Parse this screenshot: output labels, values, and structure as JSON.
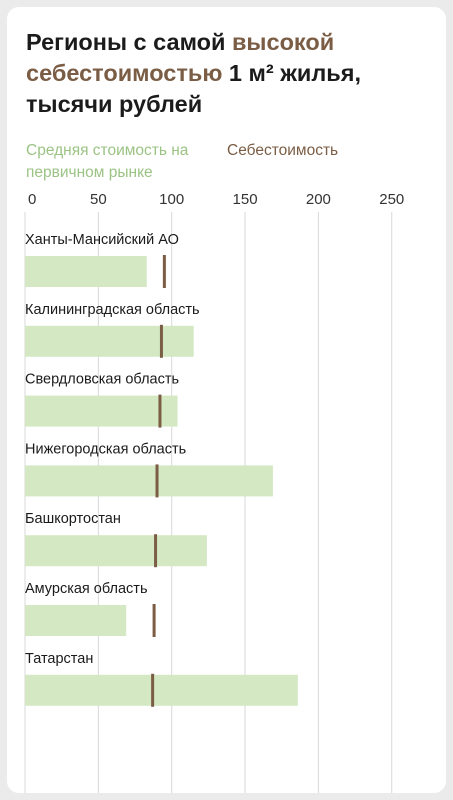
{
  "title": {
    "part1": "Регионы с самой ",
    "highlight": "высокой себестоимостью",
    "part2": " 1 м² жилья, тысячи рублей"
  },
  "colors": {
    "avg": "#d4e9c3",
    "avg_text": "#9bc384",
    "cost": "#7a5d44",
    "grid": "#d8d8d8"
  },
  "chart_data": {
    "type": "bar",
    "orientation": "horizontal",
    "categories": [
      "Ханты-Мансийский АО",
      "Калининградская область",
      "Свердловская область",
      "Нижегородская область",
      "Башкортостан",
      "Амурская область",
      "Татарстан"
    ],
    "series": [
      {
        "name": "Средняя стоимость на первичном рынке",
        "values": [
          83,
          115,
          104,
          169,
          124,
          69,
          186
        ],
        "mark": "bar"
      },
      {
        "name": "Себестоимость",
        "values": [
          95,
          93,
          92,
          90,
          89,
          88,
          87
        ],
        "mark": "tick"
      }
    ],
    "x_ticks": [
      0,
      50,
      100,
      150,
      200,
      250
    ],
    "xlim": [
      0,
      250
    ],
    "grid": true,
    "legend_position": "top-left"
  }
}
